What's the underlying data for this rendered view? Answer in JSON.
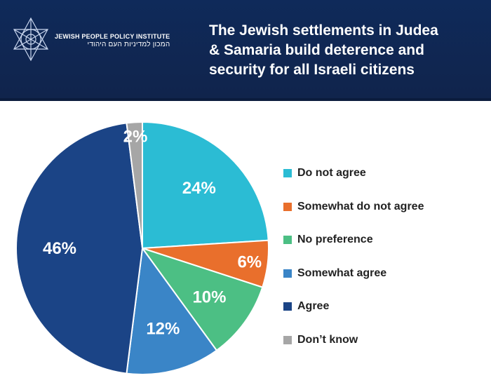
{
  "header": {
    "org_name": "JEWISH PEOPLE POLICY INSTITUTE",
    "org_name_hebrew": "המכון למדיניות העם היהודי",
    "title": "The Jewish settlements in Judea\n& Samaria build deterence and\nsecurity for all Israeli citizens"
  },
  "colors": {
    "header_bg": "#10244c"
  },
  "chart_data": {
    "type": "pie",
    "title": "The Jewish settlements in Judea & Samaria build deterence and security for all Israeli citizens",
    "start_angle_deg": 0,
    "direction": "clockwise",
    "slices": [
      {
        "label": "Do not agree",
        "value": 24,
        "display": "24%",
        "color": "#2bbcd4"
      },
      {
        "label": "Somewhat do not agree",
        "value": 6,
        "display": "6%",
        "color": "#e96f2c"
      },
      {
        "label": "No preference",
        "value": 10,
        "display": "10%",
        "color": "#4cbf84"
      },
      {
        "label": "Somewhat agree",
        "value": 12,
        "display": "12%",
        "color": "#3a85c7"
      },
      {
        "label": "Agree",
        "value": 46,
        "display": "46%",
        "color": "#1b4486"
      },
      {
        "label": "Don’t know",
        "value": 2,
        "display": "2%",
        "color": "#a6a6a6"
      }
    ],
    "legend_position": "right"
  }
}
